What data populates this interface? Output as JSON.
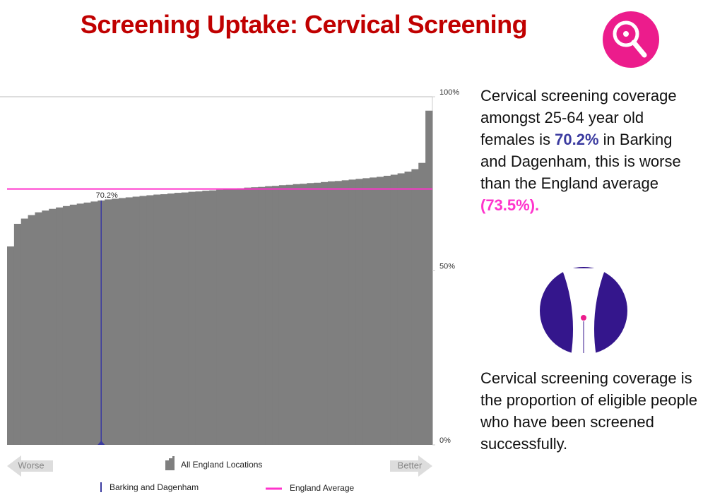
{
  "title": "Screening Uptake: Cervical Screening",
  "chart_data": {
    "type": "area",
    "series_name": "All England Locations",
    "color": "#7f7f7f",
    "values": [
      57,
      63.5,
      65,
      66,
      66.8,
      67.3,
      67.8,
      68.2,
      68.6,
      69,
      69.3,
      69.6,
      69.9,
      70.2,
      70.5,
      70.7,
      70.9,
      71.1,
      71.3,
      71.5,
      71.7,
      71.9,
      72.0,
      72.2,
      72.4,
      72.5,
      72.7,
      72.8,
      73.0,
      73.1,
      73.3,
      73.4,
      73.6,
      73.7,
      73.9,
      74.0,
      74.1,
      74.3,
      74.4,
      74.6,
      74.7,
      74.9,
      75.0,
      75.2,
      75.3,
      75.5,
      75.7,
      75.8,
      76.0,
      76.2,
      76.4,
      76.6,
      76.8,
      77.0,
      77.3,
      77.6,
      78.0,
      78.5,
      79.2,
      81,
      96
    ],
    "ylim": [
      0,
      100
    ],
    "yticks": [
      {
        "value": 0,
        "label": "0%"
      },
      {
        "value": 50,
        "label": "50%"
      },
      {
        "value": 100,
        "label": "100%"
      }
    ],
    "highlight": {
      "name": "Barking and Dagenham",
      "index": 13,
      "value": 70.2,
      "label": "70.2%",
      "color": "#3b3ba0"
    },
    "reference": {
      "name": "England Average",
      "value": 73.5,
      "color": "#ff33cc"
    },
    "worse_label": "Worse",
    "better_label": "Better"
  },
  "text_panel": {
    "coverage": {
      "before": "Cervical screening coverage amongst 25-64 year old females is ",
      "value": "70.2%",
      "middle": " in Barking and Dagenham, this is worse than the England average ",
      "average": "(73.5%)."
    },
    "definition": "Cervical screening coverage is the proportion of eligible people who have been screened successfully."
  }
}
